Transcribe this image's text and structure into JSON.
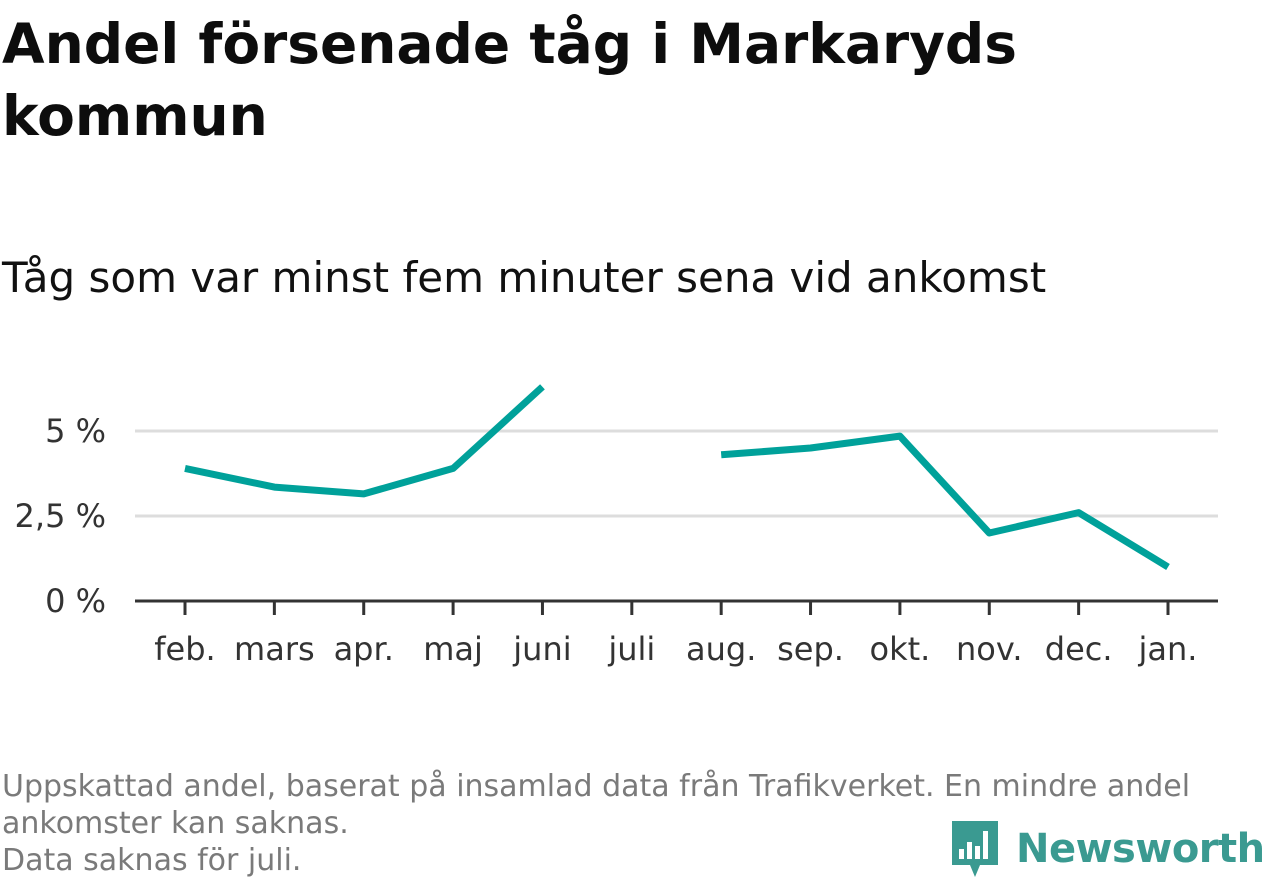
{
  "title": "Andel försenade tåg i Markaryds kommun",
  "subtitle": "Tåg som var minst fem minuter sena vid ankomst",
  "footnote": {
    "line1": "Uppskattad andel, baserat på insamlad data från Trafikverket. En mindre andel",
    "line2": "ankomster kan saknas.",
    "line3": "Data saknas för juli."
  },
  "logo": {
    "text": "Newsworthy",
    "icon": "bar-chart-speech-icon",
    "color": "#3a9a91"
  },
  "chart_data": {
    "type": "line",
    "categories": [
      "feb.",
      "mars",
      "apr.",
      "maj",
      "juni",
      "juli",
      "aug.",
      "sep.",
      "okt.",
      "nov.",
      "dec.",
      "jan."
    ],
    "series": [
      {
        "values": [
          3.9,
          3.35,
          3.15,
          3.9,
          6.3,
          null,
          4.3,
          4.5,
          4.85,
          2.0,
          2.6,
          1.0
        ],
        "color": "#00a19a"
      }
    ],
    "yticks": [
      {
        "value": 0,
        "label": "0 %"
      },
      {
        "value": 2.5,
        "label": "2,5 %"
      },
      {
        "value": 5,
        "label": "5 %"
      }
    ],
    "ylim": [
      0,
      6.5
    ],
    "grid": true,
    "xlabel": "",
    "ylabel": ""
  }
}
